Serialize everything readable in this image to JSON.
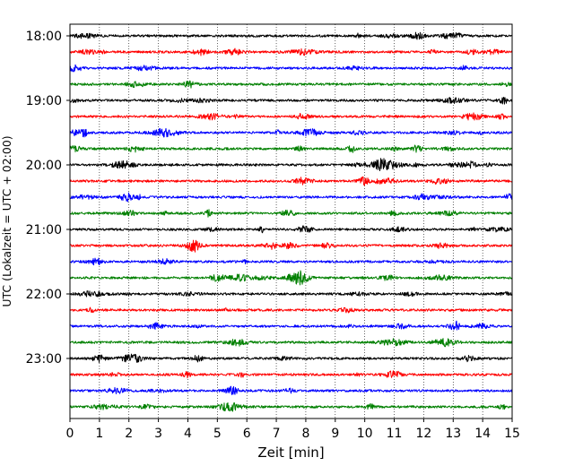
{
  "chart_data": {
    "type": "line",
    "title": "",
    "xlabel": "Zeit  [min]",
    "ylabel": "UTC (Lokalzeit = UTC + 02:00)",
    "xlim": [
      0,
      15
    ],
    "x_ticks": [
      "0",
      "1",
      "2",
      "3",
      "4",
      "5",
      "6",
      "7",
      "8",
      "9",
      "10",
      "11",
      "12",
      "13",
      "14",
      "15"
    ],
    "y_ticks": [
      "18:00",
      "19:00",
      "20:00",
      "21:00",
      "22:00",
      "23:00"
    ],
    "grid": "vertical dotted at each minute",
    "trace_interval_minutes": 15,
    "first_trace": "18:00",
    "last_trace": "23:45",
    "trace_count": 24,
    "series_colors": [
      "#000000",
      "#ff0000",
      "#0000ff",
      "#008000"
    ]
  }
}
